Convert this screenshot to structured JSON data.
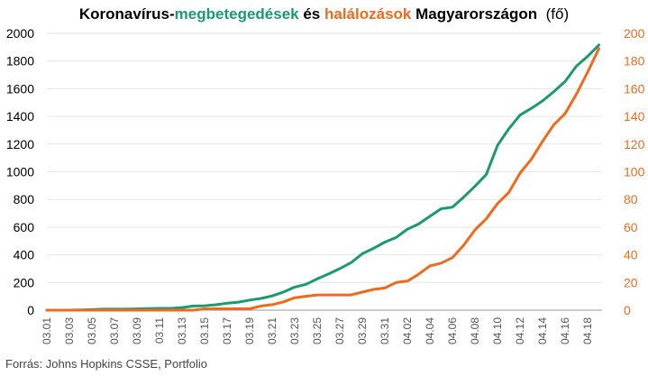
{
  "title": {
    "part1": "Koronavírus-",
    "part2": "megbetegedések",
    "part3": " és ",
    "part4": "halálozások",
    "part5": " Magyarországon",
    "unit": "(fő)"
  },
  "source": "Forrás: Johns Hopkins CSSE, Portfolio",
  "colors": {
    "cases": "#1a9b6e",
    "deaths": "#f06a1c",
    "grid": "#e6e6e6",
    "axis": "#000000"
  },
  "chart_data": {
    "type": "line",
    "title": "Koronavírus-megbetegedések és halálozások Magyarországon (fő)",
    "x": [
      "03.01",
      "03.02",
      "03.03",
      "03.04",
      "03.05",
      "03.06",
      "03.07",
      "03.08",
      "03.09",
      "03.10",
      "03.11",
      "03.12",
      "03.13",
      "03.14",
      "03.15",
      "03.16",
      "03.17",
      "03.18",
      "03.19",
      "03.20",
      "03.21",
      "03.22",
      "03.23",
      "03.24",
      "03.25",
      "03.26",
      "03.27",
      "03.28",
      "03.29",
      "03.30",
      "03.31",
      "04.01",
      "04.02",
      "04.03",
      "04.04",
      "04.05",
      "04.06",
      "04.07",
      "04.08",
      "04.09",
      "04.10",
      "04.11",
      "04.12",
      "04.13",
      "04.14",
      "04.15",
      "04.16",
      "04.17",
      "04.18",
      "04.19"
    ],
    "x_tick_labels": [
      "03.01",
      "03.03",
      "03.05",
      "03.07",
      "03.09",
      "03.11",
      "03.13",
      "03.15",
      "03.17",
      "03.19",
      "03.21",
      "03.23",
      "03.25",
      "03.27",
      "03.29",
      "03.31",
      "04.02",
      "04.04",
      "04.06",
      "04.08",
      "04.10",
      "04.12",
      "04.14",
      "04.16",
      "04.18"
    ],
    "series": [
      {
        "name": "megbetegedések",
        "axis": "left",
        "values": [
          0,
          0,
          0,
          2,
          4,
          7,
          7,
          7,
          9,
          12,
          13,
          13,
          19,
          30,
          32,
          39,
          50,
          58,
          73,
          85,
          103,
          131,
          167,
          187,
          226,
          261,
          300,
          343,
          408,
          447,
          492,
          525,
          585,
          623,
          678,
          733,
          744,
          817,
          895,
          980,
          1190,
          1310,
          1410,
          1458,
          1512,
          1579,
          1652,
          1763,
          1834,
          1916
        ]
      },
      {
        "name": "halálozások",
        "axis": "right",
        "values": [
          0,
          0,
          0,
          0,
          0,
          0,
          0,
          0,
          0,
          0,
          0,
          0,
          0,
          0,
          1,
          1,
          1,
          1,
          1,
          3,
          4,
          6,
          9,
          10,
          11,
          11,
          11,
          11,
          13,
          15,
          16,
          20,
          21,
          26,
          32,
          34,
          38,
          47,
          58,
          66,
          77,
          85,
          99,
          109,
          122,
          134,
          142,
          156,
          172,
          189
        ]
      }
    ],
    "ylim_left": [
      0,
      2000
    ],
    "yticks_left": [
      0,
      200,
      400,
      600,
      800,
      1000,
      1200,
      1400,
      1600,
      1800,
      2000
    ],
    "ylim_right": [
      0,
      200
    ],
    "yticks_right": [
      0,
      20,
      40,
      60,
      80,
      100,
      120,
      140,
      160,
      180,
      200
    ],
    "grid": true,
    "legend": "none (series named in title)"
  }
}
